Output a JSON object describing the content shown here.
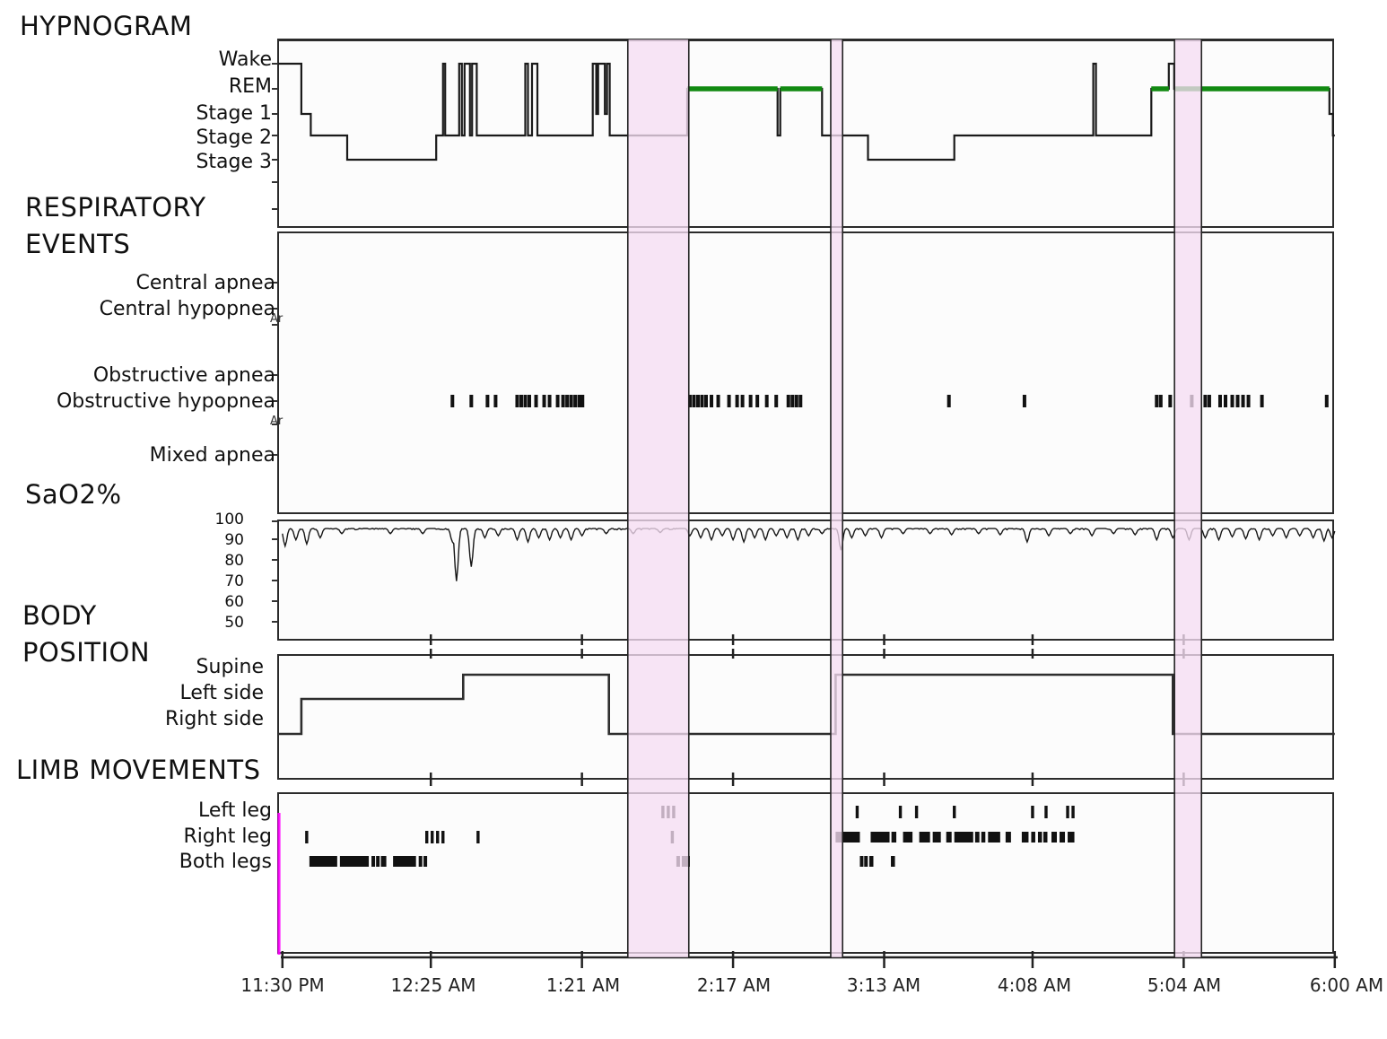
{
  "chart_data": {
    "type": "line",
    "description": "Overnight polysomnography summary: hypnogram, respiratory events, SaO2, body position and limb movements versus clock time",
    "x_axis": {
      "labels": [
        "11:30 PM",
        "12:25 AM",
        "1:21 AM",
        "2:17 AM",
        "3:13 AM",
        "4:08 AM",
        "5:04 AM",
        "6:00 AM"
      ],
      "tick_minutes": [
        0,
        55,
        111,
        167,
        223,
        278,
        334,
        390
      ],
      "total_minutes": 390
    },
    "highlight_bands": {
      "color": "#f5dcf2",
      "border_color": "#222222",
      "regions_min": [
        [
          128,
          150.6
        ],
        [
          203.2,
          207.6
        ],
        [
          330.6,
          340.6
        ]
      ]
    },
    "panels": {
      "hypnogram": {
        "title": "HYPNOGRAM",
        "type": "line",
        "row_labels": [
          "Wake",
          "REM",
          "Stage 1",
          "Stage 2",
          "Stage 3"
        ],
        "line_color": "#1a1a1a",
        "rem_color": "#128a12",
        "rem_segments_min": [
          [
            150,
            183.5
          ],
          [
            184.5,
            200
          ],
          [
            322,
            328.5
          ],
          [
            330.5,
            388
          ]
        ],
        "segments": [
          [
            0,
            7,
            "Wake"
          ],
          [
            7,
            10.5,
            "Stage 1"
          ],
          [
            10.5,
            24,
            "Stage 2"
          ],
          [
            24,
            57,
            "Stage 3"
          ],
          [
            57,
            59.5,
            "Stage 2"
          ],
          [
            59.5,
            60.3,
            "Wake"
          ],
          [
            60.3,
            65.5,
            "Stage 2"
          ],
          [
            65.5,
            66.5,
            "Wake"
          ],
          [
            66.5,
            67.5,
            "Stage 2"
          ],
          [
            67.5,
            69.5,
            "Wake"
          ],
          [
            69.5,
            70.3,
            "Stage 2"
          ],
          [
            70.3,
            72,
            "Wake"
          ],
          [
            72,
            90,
            "Stage 2"
          ],
          [
            90,
            91,
            "Wake"
          ],
          [
            91,
            92.5,
            "Stage 2"
          ],
          [
            92.5,
            94.5,
            "Wake"
          ],
          [
            94.5,
            115,
            "Stage 2"
          ],
          [
            115,
            116.3,
            "Wake"
          ],
          [
            116.3,
            117,
            "Stage 1"
          ],
          [
            117,
            119.5,
            "Wake"
          ],
          [
            119.5,
            120.3,
            "Stage 1"
          ],
          [
            120.3,
            121.3,
            "Wake"
          ],
          [
            121.3,
            150,
            "Stage 2"
          ],
          [
            150,
            183.5,
            "REM"
          ],
          [
            183.5,
            184.5,
            "Stage 2"
          ],
          [
            184.5,
            200,
            "REM"
          ],
          [
            200,
            217,
            "Stage 2"
          ],
          [
            217,
            249,
            "Stage 3"
          ],
          [
            249,
            300.5,
            "Stage 2"
          ],
          [
            300.5,
            301.5,
            "Wake"
          ],
          [
            301.5,
            322,
            "Stage 2"
          ],
          [
            322,
            328.5,
            "REM"
          ],
          [
            328.5,
            330.5,
            "Wake"
          ],
          [
            330.5,
            388,
            "REM"
          ],
          [
            388,
            389.3,
            "Stage 1"
          ],
          [
            389.3,
            390,
            "Stage 2"
          ]
        ]
      },
      "respiratory": {
        "title_line1": "RESPIRATORY",
        "title_line2": "EVENTS",
        "type": "scatter",
        "row_labels": [
          "Central apnea",
          "Central hypopnea",
          "Obstructive apnea",
          "Obstructive hypopnea",
          "Mixed apnea"
        ],
        "edge_labels": [
          "Ar",
          "Ar"
        ],
        "central_apnea_events_min": [],
        "central_hypopnea_events_min": [],
        "obstructive_apnea_events_min": [],
        "mixed_apnea_events_min": [],
        "obstructive_hypopnea_events_min": [
          63,
          70,
          76,
          79,
          87,
          88.5,
          90,
          91.5,
          94,
          97,
          99,
          102,
          104,
          105.5,
          107,
          108.5,
          110,
          111.2,
          151,
          152.5,
          154,
          155.5,
          157,
          159,
          161.5,
          165.5,
          168.5,
          170.5,
          173.5,
          176,
          179.5,
          183,
          187.5,
          189,
          190.5,
          192,
          247,
          275,
          324,
          325.5,
          329,
          337,
          342,
          343.5,
          347.5,
          349.5,
          352,
          354,
          356,
          358,
          363,
          387
        ]
      },
      "sao2": {
        "title": "SaO2%",
        "type": "line",
        "ytick_labels": [
          "100",
          "90",
          "80",
          "70",
          "60",
          "50"
        ],
        "ylim": [
          45,
          100
        ],
        "baseline_pct": 96,
        "dips_min_pct": [
          [
            1,
            88
          ],
          [
            5,
            91
          ],
          [
            9,
            89
          ],
          [
            14,
            92
          ],
          [
            22,
            94
          ],
          [
            40,
            94
          ],
          [
            52,
            94
          ],
          [
            63,
            90
          ],
          [
            64.5,
            71
          ],
          [
            70,
            78
          ],
          [
            75,
            92
          ],
          [
            80,
            93
          ],
          [
            87,
            91
          ],
          [
            91,
            90
          ],
          [
            95,
            92
          ],
          [
            99,
            91
          ],
          [
            103,
            92
          ],
          [
            107,
            91
          ],
          [
            111,
            93
          ],
          [
            120,
            94
          ],
          [
            130,
            94
          ],
          [
            140,
            94.5
          ],
          [
            151,
            93
          ],
          [
            155,
            92
          ],
          [
            159,
            91
          ],
          [
            163,
            93
          ],
          [
            167,
            91
          ],
          [
            171,
            90
          ],
          [
            175,
            92
          ],
          [
            179,
            91
          ],
          [
            183,
            93
          ],
          [
            187,
            92
          ],
          [
            191,
            91
          ],
          [
            195,
            93
          ],
          [
            200,
            94
          ],
          [
            207,
            86
          ],
          [
            211,
            92
          ],
          [
            216,
            93
          ],
          [
            222,
            92
          ],
          [
            230,
            94
          ],
          [
            240,
            94
          ],
          [
            248,
            93.5
          ],
          [
            258,
            94
          ],
          [
            266,
            93.5
          ],
          [
            276,
            90
          ],
          [
            284,
            93
          ],
          [
            292,
            94
          ],
          [
            300,
            93
          ],
          [
            308,
            94
          ],
          [
            316,
            93.5
          ],
          [
            324,
            91
          ],
          [
            330,
            92
          ],
          [
            336,
            91
          ],
          [
            342,
            92
          ],
          [
            347,
            91
          ],
          [
            352,
            92.5
          ],
          [
            357,
            91.5
          ],
          [
            362,
            91
          ],
          [
            367,
            93
          ],
          [
            372,
            92
          ],
          [
            377,
            93
          ],
          [
            382,
            92
          ],
          [
            386,
            90.5
          ],
          [
            389,
            92
          ]
        ]
      },
      "body_position": {
        "title_line1": "BODY",
        "title_line2": "POSITION",
        "type": "line",
        "row_labels": [
          "Supine",
          "Left side",
          "Right side"
        ],
        "segments": [
          [
            0,
            7,
            "Right side"
          ],
          [
            7,
            67,
            "Left side"
          ],
          [
            67,
            121,
            "Supine"
          ],
          [
            121,
            205,
            "Right side"
          ],
          [
            205,
            330,
            "Supine"
          ],
          [
            330,
            390,
            "Right side"
          ]
        ]
      },
      "limb_movements": {
        "title": "LIMB MOVEMENTS",
        "type": "scatter",
        "row_labels": [
          "Left leg",
          "Right leg",
          "Both legs"
        ],
        "start_marker_color": "#ff00ff",
        "left_leg_ticks_min": [
          141,
          143,
          145,
          213,
          229,
          235,
          249,
          278,
          283,
          291,
          293
        ],
        "right_leg_ticks_min": [
          9,
          53.5,
          55.5,
          57.5,
          59.5,
          72.5,
          144.5
        ],
        "right_leg_ranges_min": [
          [
            205,
            214
          ],
          [
            218,
            225
          ],
          [
            225.7,
            227.5
          ],
          [
            230,
            233.5
          ],
          [
            236,
            240
          ],
          [
            241,
            244
          ],
          [
            246,
            248
          ],
          [
            249,
            256
          ],
          [
            256.7,
            258.3
          ],
          [
            259,
            260.5
          ],
          [
            261.5,
            266
          ],
          [
            268,
            270
          ],
          [
            274,
            276.5
          ],
          [
            277.5,
            279
          ],
          [
            280,
            281.5
          ],
          [
            282,
            283.5
          ],
          [
            285,
            287
          ],
          [
            288,
            290
          ],
          [
            291,
            293.5
          ]
        ],
        "both_legs_ranges_min": [
          [
            10,
            20.3
          ],
          [
            21.3,
            32
          ],
          [
            33,
            34
          ],
          [
            34.7,
            35.7
          ],
          [
            36.5,
            38.5
          ],
          [
            41,
            49.5
          ],
          [
            50.5,
            51.5
          ],
          [
            52.3,
            53.2
          ],
          [
            146,
            146.6
          ],
          [
            148,
            151
          ],
          [
            214,
            214.6
          ],
          [
            215.6,
            216.2
          ],
          [
            217.5,
            219
          ],
          [
            225.5,
            227
          ]
        ]
      }
    }
  }
}
